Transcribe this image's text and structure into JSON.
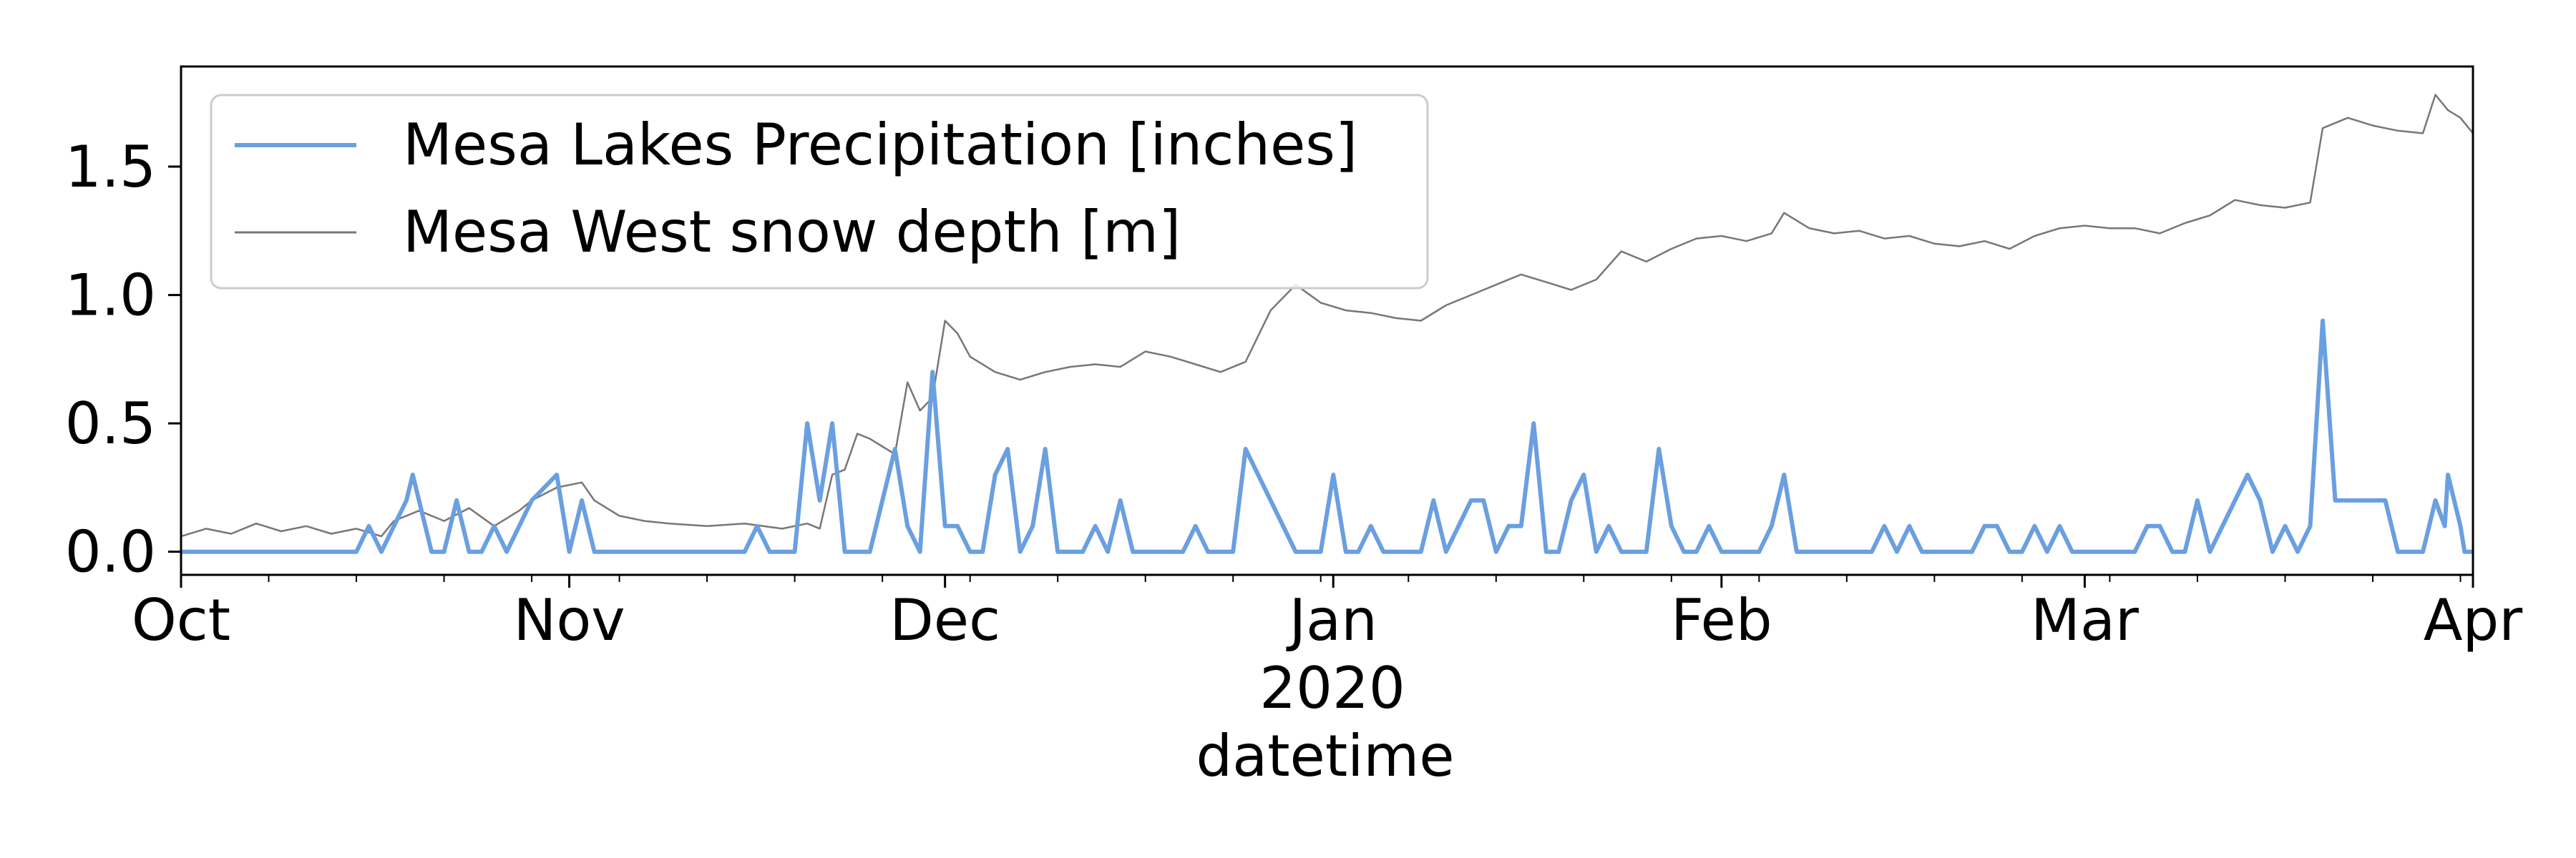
{
  "chart_data": {
    "type": "line",
    "title": "",
    "xlabel": "datetime",
    "ylabel": "",
    "x_year_label": "2020",
    "xlim": [
      "2019-10-01",
      "2020-04-01"
    ],
    "ylim": [
      -0.09,
      1.89
    ],
    "y_ticks": [
      "0.0",
      "0.5",
      "1.0",
      "1.5"
    ],
    "y_tick_values": [
      0.0,
      0.5,
      1.0,
      1.5
    ],
    "x_major_ticks": [
      {
        "date": "2019-10-01",
        "label": "Oct"
      },
      {
        "date": "2019-11-01",
        "label": "Nov"
      },
      {
        "date": "2019-12-01",
        "label": "Dec"
      },
      {
        "date": "2020-01-01",
        "label": "Jan"
      },
      {
        "date": "2020-02-01",
        "label": "Feb"
      },
      {
        "date": "2020-03-01",
        "label": "Mar"
      },
      {
        "date": "2020-04-01",
        "label": "Apr"
      }
    ],
    "grid": false,
    "legend_position": "top-left",
    "series": [
      {
        "name": "Mesa Lakes Precipitation [inches]",
        "color": "#6a9fe0",
        "points": [
          [
            "2019-10-01",
            0
          ],
          [
            "2019-10-15",
            0
          ],
          [
            "2019-10-16",
            0.1
          ],
          [
            "2019-10-17",
            0
          ],
          [
            "2019-10-19",
            0.2
          ],
          [
            "2019-10-19T12:00",
            0.3
          ],
          [
            "2019-10-21",
            0
          ],
          [
            "2019-10-22",
            0
          ],
          [
            "2019-10-23",
            0.2
          ],
          [
            "2019-10-24",
            0
          ],
          [
            "2019-10-25",
            0
          ],
          [
            "2019-10-26",
            0.1
          ],
          [
            "2019-10-27",
            0
          ],
          [
            "2019-10-29",
            0.2
          ],
          [
            "2019-10-31",
            0.3
          ],
          [
            "2019-11-01",
            0
          ],
          [
            "2019-11-02",
            0.2
          ],
          [
            "2019-11-03",
            0
          ],
          [
            "2019-11-15",
            0
          ],
          [
            "2019-11-16",
            0.1
          ],
          [
            "2019-11-17",
            0
          ],
          [
            "2019-11-19",
            0
          ],
          [
            "2019-11-20",
            0.5
          ],
          [
            "2019-11-21",
            0.2
          ],
          [
            "2019-11-22",
            0.5
          ],
          [
            "2019-11-23",
            0
          ],
          [
            "2019-11-25",
            0
          ],
          [
            "2019-11-27",
            0.4
          ],
          [
            "2019-11-28",
            0.1
          ],
          [
            "2019-11-29",
            0
          ],
          [
            "2019-11-30",
            0.7
          ],
          [
            "2019-12-01",
            0.1
          ],
          [
            "2019-12-02",
            0.1
          ],
          [
            "2019-12-03",
            0
          ],
          [
            "2019-12-04",
            0
          ],
          [
            "2019-12-05",
            0.3
          ],
          [
            "2019-12-06",
            0.4
          ],
          [
            "2019-12-07",
            0
          ],
          [
            "2019-12-08",
            0.1
          ],
          [
            "2019-12-09",
            0.4
          ],
          [
            "2019-12-10",
            0
          ],
          [
            "2019-12-12",
            0
          ],
          [
            "2019-12-13",
            0.1
          ],
          [
            "2019-12-14",
            0
          ],
          [
            "2019-12-15",
            0.2
          ],
          [
            "2019-12-16",
            0
          ],
          [
            "2019-12-20",
            0
          ],
          [
            "2019-12-21",
            0.1
          ],
          [
            "2019-12-22",
            0
          ],
          [
            "2019-12-24",
            0
          ],
          [
            "2019-12-25",
            0.4
          ],
          [
            "2019-12-29",
            0
          ],
          [
            "2019-12-31",
            0
          ],
          [
            "2020-01-01",
            0.3
          ],
          [
            "2020-01-02",
            0
          ],
          [
            "2020-01-03",
            0
          ],
          [
            "2020-01-04",
            0.1
          ],
          [
            "2020-01-05",
            0
          ],
          [
            "2020-01-08",
            0
          ],
          [
            "2020-01-09",
            0.2
          ],
          [
            "2020-01-10",
            0
          ],
          [
            "2020-01-12",
            0.2
          ],
          [
            "2020-01-13",
            0.2
          ],
          [
            "2020-01-14",
            0
          ],
          [
            "2020-01-15",
            0.1
          ],
          [
            "2020-01-16",
            0.1
          ],
          [
            "2020-01-17",
            0.5
          ],
          [
            "2020-01-18",
            0
          ],
          [
            "2020-01-19",
            0
          ],
          [
            "2020-01-20",
            0.2
          ],
          [
            "2020-01-21",
            0.3
          ],
          [
            "2020-01-22",
            0
          ],
          [
            "2020-01-23",
            0.1
          ],
          [
            "2020-01-24",
            0
          ],
          [
            "2020-01-26",
            0
          ],
          [
            "2020-01-27",
            0.4
          ],
          [
            "2020-01-28",
            0.1
          ],
          [
            "2020-01-29",
            0
          ],
          [
            "2020-01-30",
            0
          ],
          [
            "2020-01-31",
            0.1
          ],
          [
            "2020-02-01",
            0
          ],
          [
            "2020-02-04",
            0
          ],
          [
            "2020-02-05",
            0.1
          ],
          [
            "2020-02-06",
            0.3
          ],
          [
            "2020-02-07",
            0
          ],
          [
            "2020-02-13",
            0
          ],
          [
            "2020-02-14",
            0.1
          ],
          [
            "2020-02-15",
            0
          ],
          [
            "2020-02-16",
            0.1
          ],
          [
            "2020-02-17",
            0
          ],
          [
            "2020-02-21",
            0
          ],
          [
            "2020-02-22",
            0.1
          ],
          [
            "2020-02-23",
            0.1
          ],
          [
            "2020-02-24",
            0
          ],
          [
            "2020-02-25",
            0
          ],
          [
            "2020-02-26",
            0.1
          ],
          [
            "2020-02-27",
            0
          ],
          [
            "2020-02-28",
            0.1
          ],
          [
            "2020-02-29",
            0
          ],
          [
            "2020-03-05",
            0
          ],
          [
            "2020-03-06",
            0.1
          ],
          [
            "2020-03-07",
            0.1
          ],
          [
            "2020-03-08",
            0
          ],
          [
            "2020-03-09",
            0
          ],
          [
            "2020-03-10",
            0.2
          ],
          [
            "2020-03-11",
            0
          ],
          [
            "2020-03-14",
            0.3
          ],
          [
            "2020-03-15",
            0.2
          ],
          [
            "2020-03-16",
            0
          ],
          [
            "2020-03-17",
            0.1
          ],
          [
            "2020-03-18",
            0
          ],
          [
            "2020-03-19",
            0.1
          ],
          [
            "2020-03-20",
            0.9
          ],
          [
            "2020-03-21",
            0.2
          ],
          [
            "2020-03-25",
            0.2
          ],
          [
            "2020-03-26",
            0
          ],
          [
            "2020-03-28",
            0
          ],
          [
            "2020-03-29",
            0.2
          ],
          [
            "2020-03-29T18:00",
            0.1
          ],
          [
            "2020-03-30",
            0.3
          ],
          [
            "2020-03-31",
            0.1
          ],
          [
            "2020-03-31T08:00",
            0
          ],
          [
            "2020-04-01",
            0
          ]
        ]
      },
      {
        "name": "Mesa West snow depth [m]",
        "color": "#777777",
        "points": [
          [
            "2019-10-01",
            0.06
          ],
          [
            "2019-10-03",
            0.09
          ],
          [
            "2019-10-05",
            0.07
          ],
          [
            "2019-10-07",
            0.11
          ],
          [
            "2019-10-09",
            0.08
          ],
          [
            "2019-10-11",
            0.1
          ],
          [
            "2019-10-13",
            0.07
          ],
          [
            "2019-10-15",
            0.09
          ],
          [
            "2019-10-17",
            0.06
          ],
          [
            "2019-10-18",
            0.12
          ],
          [
            "2019-10-20",
            0.16
          ],
          [
            "2019-10-22",
            0.12
          ],
          [
            "2019-10-24",
            0.17
          ],
          [
            "2019-10-26",
            0.1
          ],
          [
            "2019-10-28",
            0.16
          ],
          [
            "2019-10-29",
            0.2
          ],
          [
            "2019-10-31",
            0.25
          ],
          [
            "2019-11-02",
            0.27
          ],
          [
            "2019-11-03",
            0.2
          ],
          [
            "2019-11-05",
            0.14
          ],
          [
            "2019-11-07",
            0.12
          ],
          [
            "2019-11-09",
            0.11
          ],
          [
            "2019-11-12",
            0.1
          ],
          [
            "2019-11-15",
            0.11
          ],
          [
            "2019-11-18",
            0.09
          ],
          [
            "2019-11-20",
            0.11
          ],
          [
            "2019-11-21",
            0.09
          ],
          [
            "2019-11-22",
            0.3
          ],
          [
            "2019-11-23",
            0.32
          ],
          [
            "2019-11-24",
            0.46
          ],
          [
            "2019-11-25",
            0.44
          ],
          [
            "2019-11-26",
            0.41
          ],
          [
            "2019-11-27",
            0.38
          ],
          [
            "2019-11-28",
            0.66
          ],
          [
            "2019-11-29",
            0.55
          ],
          [
            "2019-11-30",
            0.6
          ],
          [
            "2019-12-01",
            0.9
          ],
          [
            "2019-12-02",
            0.85
          ],
          [
            "2019-12-03",
            0.76
          ],
          [
            "2019-12-05",
            0.7
          ],
          [
            "2019-12-07",
            0.67
          ],
          [
            "2019-12-09",
            0.7
          ],
          [
            "2019-12-11",
            0.72
          ],
          [
            "2019-12-13",
            0.73
          ],
          [
            "2019-12-15",
            0.72
          ],
          [
            "2019-12-17",
            0.78
          ],
          [
            "2019-12-19",
            0.76
          ],
          [
            "2019-12-21",
            0.73
          ],
          [
            "2019-12-23",
            0.7
          ],
          [
            "2019-12-25",
            0.74
          ],
          [
            "2019-12-27",
            0.94
          ],
          [
            "2019-12-29",
            1.04
          ],
          [
            "2019-12-31",
            0.97
          ],
          [
            "2020-01-02",
            0.94
          ],
          [
            "2020-01-04",
            0.93
          ],
          [
            "2020-01-06",
            0.91
          ],
          [
            "2020-01-08",
            0.9
          ],
          [
            "2020-01-10",
            0.96
          ],
          [
            "2020-01-12",
            1.0
          ],
          [
            "2020-01-14",
            1.04
          ],
          [
            "2020-01-16",
            1.08
          ],
          [
            "2020-01-18",
            1.05
          ],
          [
            "2020-01-20",
            1.02
          ],
          [
            "2020-01-22",
            1.06
          ],
          [
            "2020-01-24",
            1.17
          ],
          [
            "2020-01-26",
            1.13
          ],
          [
            "2020-01-28",
            1.18
          ],
          [
            "2020-01-30",
            1.22
          ],
          [
            "2020-02-01",
            1.23
          ],
          [
            "2020-02-03",
            1.21
          ],
          [
            "2020-02-05",
            1.24
          ],
          [
            "2020-02-06",
            1.32
          ],
          [
            "2020-02-08",
            1.26
          ],
          [
            "2020-02-10",
            1.24
          ],
          [
            "2020-02-12",
            1.25
          ],
          [
            "2020-02-14",
            1.22
          ],
          [
            "2020-02-16",
            1.23
          ],
          [
            "2020-02-18",
            1.2
          ],
          [
            "2020-02-20",
            1.19
          ],
          [
            "2020-02-22",
            1.21
          ],
          [
            "2020-02-24",
            1.18
          ],
          [
            "2020-02-26",
            1.23
          ],
          [
            "2020-02-28",
            1.26
          ],
          [
            "2020-03-01",
            1.27
          ],
          [
            "2020-03-03",
            1.26
          ],
          [
            "2020-03-05",
            1.26
          ],
          [
            "2020-03-07",
            1.24
          ],
          [
            "2020-03-09",
            1.28
          ],
          [
            "2020-03-11",
            1.31
          ],
          [
            "2020-03-13",
            1.37
          ],
          [
            "2020-03-15",
            1.35
          ],
          [
            "2020-03-17",
            1.34
          ],
          [
            "2020-03-19",
            1.36
          ],
          [
            "2020-03-20",
            1.65
          ],
          [
            "2020-03-22",
            1.69
          ],
          [
            "2020-03-24",
            1.66
          ],
          [
            "2020-03-26",
            1.64
          ],
          [
            "2020-03-28",
            1.63
          ],
          [
            "2020-03-29",
            1.78
          ],
          [
            "2020-03-30",
            1.72
          ],
          [
            "2020-03-31",
            1.69
          ],
          [
            "2020-04-01",
            1.63
          ]
        ]
      }
    ]
  }
}
